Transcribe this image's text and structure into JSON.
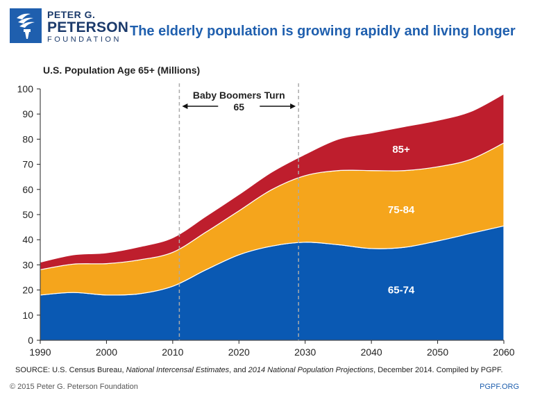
{
  "logo": {
    "line1": "PETER G.",
    "line2": "PETERSON",
    "line3": "FOUNDATION"
  },
  "headline": "The elderly population is growing rapidly and living longer",
  "chart_data": {
    "type": "area",
    "stacked": true,
    "ylabel": "U.S. Population Age 65+ (Millions)",
    "xlabel": "",
    "ylim": [
      0,
      100
    ],
    "xlim": [
      1990,
      2060
    ],
    "yticks": [
      0,
      10,
      20,
      30,
      40,
      50,
      60,
      70,
      80,
      90,
      100
    ],
    "xticks": [
      1990,
      2000,
      2010,
      2020,
      2030,
      2040,
      2050,
      2060
    ],
    "x": [
      1990,
      1995,
      2000,
      2005,
      2010,
      2015,
      2020,
      2025,
      2030,
      2035,
      2040,
      2045,
      2050,
      2055,
      2060
    ],
    "series": [
      {
        "name": "65-74",
        "color": "#0a59b3",
        "values": [
          18,
          19,
          18,
          18.5,
          21.5,
          28,
          34,
          37.5,
          39,
          38,
          36.5,
          37,
          39.5,
          42.5,
          45.5
        ]
      },
      {
        "name": "75-84",
        "color": "#f5a51c",
        "values": [
          10.1,
          11.3,
          12.5,
          13.5,
          13.5,
          15,
          17.5,
          22.5,
          26.5,
          29.5,
          31,
          30.5,
          29.5,
          29.5,
          33
        ]
      },
      {
        "name": "85+",
        "color": "#be1e2d",
        "values": [
          3,
          3.7,
          4.3,
          5.2,
          5.8,
          6.3,
          6.5,
          7,
          8.5,
          12.5,
          15,
          17.5,
          18.5,
          19,
          19.5
        ]
      }
    ],
    "annotation": {
      "text_line1": "Baby Boomers Turn",
      "text_line2": "65",
      "x_start": 2011,
      "x_end": 2029
    }
  },
  "source": {
    "prefix": "SOURCE: U.S. Census Bureau, ",
    "italic1": "National Intercensal Estimates",
    "mid": ", and ",
    "italic2": "2014 National Population Projections",
    "suffix": ", December 2014. Compiled by PGPF."
  },
  "footer": {
    "copyright": "© 2015 Peter G. Peterson Foundation",
    "site": "PGPF.ORG"
  }
}
